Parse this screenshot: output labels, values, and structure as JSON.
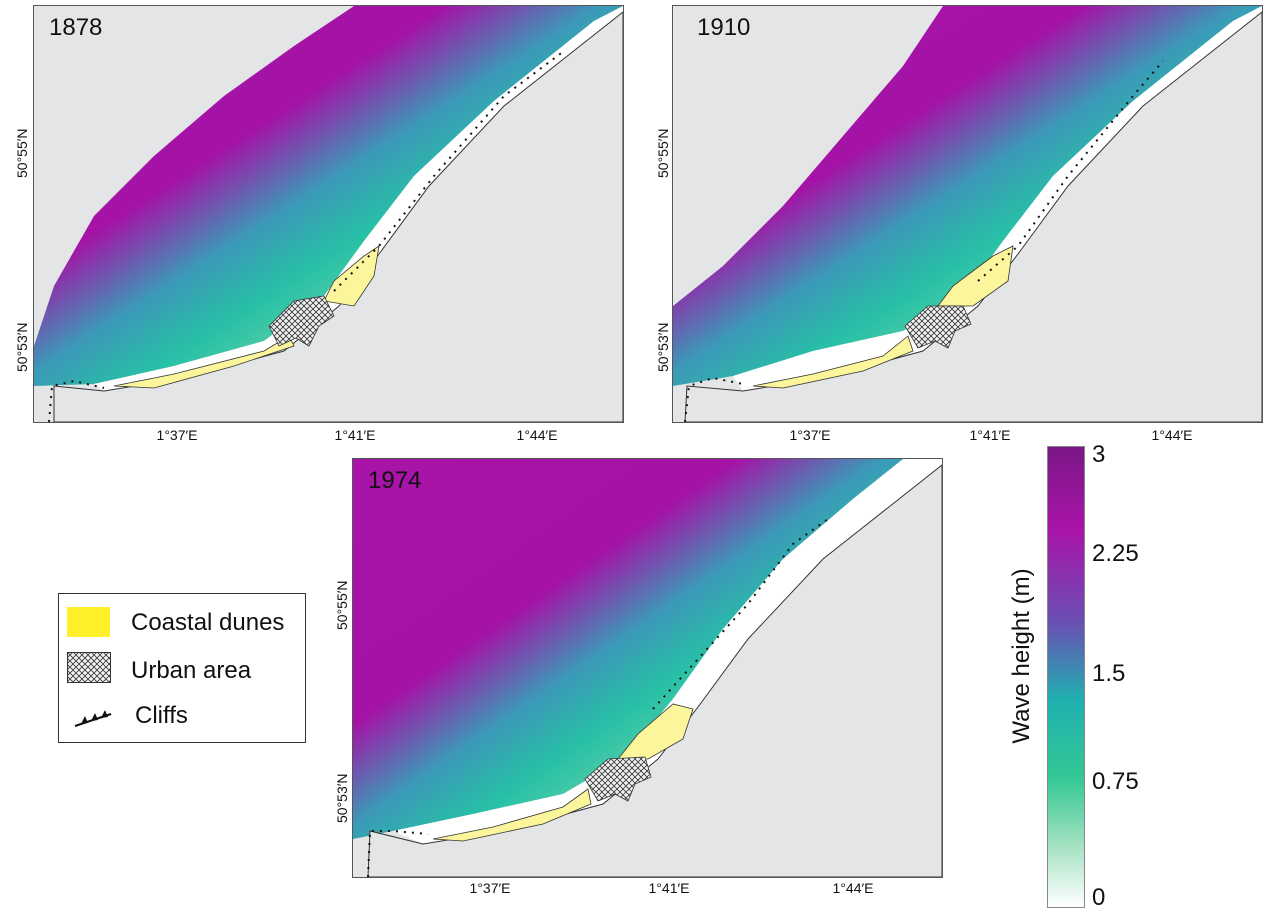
{
  "maps": [
    {
      "year": "1878",
      "lat_labels": [
        "50°55′N",
        "50°53′N"
      ],
      "lon_labels": [
        "1°37′E",
        "1°41′E",
        "1°44′E"
      ]
    },
    {
      "year": "1910",
      "lat_labels": [
        "50°55′N",
        "50°53′N"
      ],
      "lon_labels": [
        "1°37′E",
        "1°41′E",
        "1°44′E"
      ]
    },
    {
      "year": "1974",
      "lat_labels": [
        "50°55′N",
        "50°53′N"
      ],
      "lon_labels": [
        "1°37′E",
        "1°41′E",
        "1°44′E"
      ]
    }
  ],
  "legend": {
    "items": [
      {
        "label": "Coastal dunes",
        "color": "#ffef2a"
      },
      {
        "label": "Urban area"
      },
      {
        "label": "Cliffs"
      }
    ]
  },
  "colorbar": {
    "title": "Wave height (m)",
    "ticks": [
      "3",
      "2.25",
      "1.5",
      "0.75",
      "0"
    ],
    "colors": {
      "high": "#7a1787",
      "mid_high": "#a914a8",
      "mid": "#1fb0b0",
      "low_mid": "#33c894",
      "low": "#ffffff"
    }
  }
}
